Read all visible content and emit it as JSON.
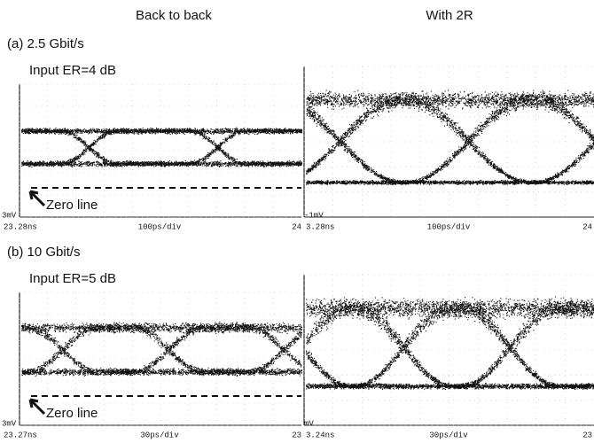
{
  "header": {
    "left": "Back to back",
    "right": "With 2R"
  },
  "panels": [
    {
      "label": "(a) 2.5 Gbit/s",
      "annotation": "Input ER=4 dB",
      "zero_line": "Zero line",
      "left_scope": {
        "offset": "3mV",
        "start": "23.28ns",
        "scale": "100ps/div",
        "end": "24"
      },
      "right_scope": {
        "offset": "-1mV",
        "start": "3.28ns",
        "scale": "100ps/div",
        "end": "24"
      }
    },
    {
      "label": "(b) 10 Gbit/s",
      "annotation": "Input ER=5 dB",
      "zero_line": "Zero line",
      "left_scope": {
        "offset": "3mV",
        "start": "23.27ns",
        "scale": "30ps/div",
        "end": "23"
      },
      "right_scope": {
        "offset": "mV",
        "start": "3.24ns",
        "scale": "30ps/div",
        "end": "23"
      }
    }
  ]
}
